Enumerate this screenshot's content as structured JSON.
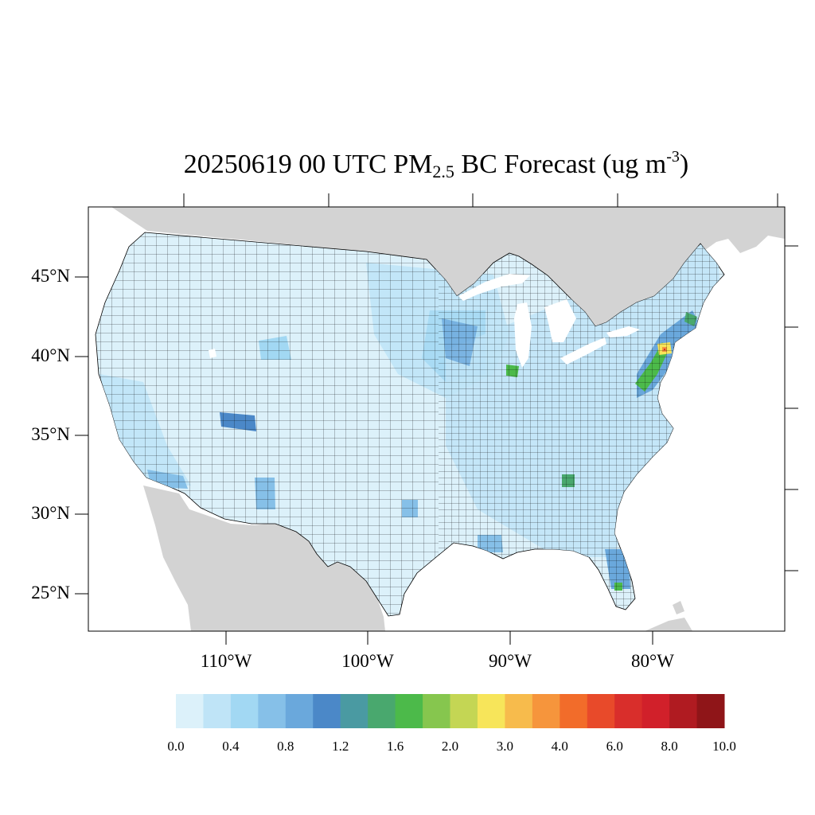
{
  "title": {
    "prefix": "20250619 00 UTC PM",
    "subscript": "2.5",
    "middle": " BC Forecast (ug m",
    "superscript": "-3",
    "suffix": ")"
  },
  "axes": {
    "lat_labels": [
      "45°N",
      "40°N",
      "35°N",
      "30°N",
      "25°N"
    ],
    "lat_values": [
      45,
      40,
      35,
      30,
      25
    ],
    "lon_labels": [
      "110°W",
      "100°W",
      "90°W",
      "80°W"
    ],
    "lon_values": [
      -110,
      -100,
      -90,
      -80
    ]
  },
  "colorbar": {
    "colors": [
      "#dcf1fa",
      "#bfe4f7",
      "#a2d8f3",
      "#86c0e8",
      "#6aa8dc",
      "#4b88c8",
      "#4a9aa2",
      "#49a86e",
      "#4cba4a",
      "#86c64e",
      "#c4d654",
      "#f7e55a",
      "#f7bb4c",
      "#f6953c",
      "#f26c2a",
      "#e84a2a",
      "#d92e2b",
      "#d1202a",
      "#b01b21",
      "#8f1518"
    ],
    "labels": [
      "0.0",
      "0.4",
      "0.8",
      "1.2",
      "1.6",
      "2.0",
      "3.0",
      "4.0",
      "6.0",
      "8.0",
      "10.0"
    ]
  },
  "colors": {
    "land_outside": "#d3d3d3",
    "water": "#ffffff",
    "county_border": "#000000",
    "base_fill": "#dcf1fa"
  }
}
